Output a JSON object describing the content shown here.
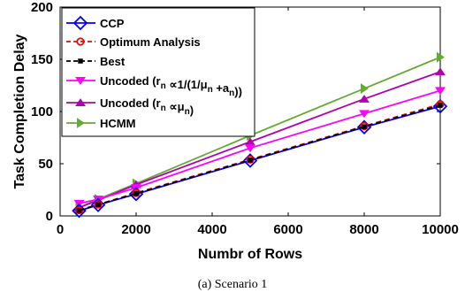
{
  "caption": "(a)  Scenario 1",
  "chart_data": {
    "type": "line",
    "xlabel": "Numbr of Rows",
    "ylabel": "Task Completion Delay",
    "xlim": [
      0,
      10000
    ],
    "ylim": [
      0,
      200
    ],
    "xticks": [
      0,
      2000,
      4000,
      6000,
      8000,
      10000
    ],
    "yticks": [
      0,
      50,
      100,
      150,
      200
    ],
    "x": [
      500,
      1000,
      2000,
      5000,
      8000,
      10000
    ],
    "legend_position": "top-left",
    "grid": false,
    "series": [
      {
        "name": "CCP",
        "values": [
          5,
          10.5,
          21,
          53,
          85,
          105
        ],
        "color": "#0000ff",
        "marker": "diamond",
        "dash": "solid"
      },
      {
        "name": "Optimum Analysis",
        "values": [
          5.5,
          11,
          22,
          54,
          86,
          107
        ],
        "color": "#ff0000",
        "marker": "circle",
        "dash": "dashed"
      },
      {
        "name": "Best",
        "values": [
          5.2,
          10.8,
          21.5,
          53.5,
          85.5,
          106
        ],
        "color": "#000000",
        "marker": "square",
        "dash": "dashed"
      },
      {
        "name": "Uncoded (r_n ∝ 1/(1/μ_n + a_n))",
        "values": [
          12,
          16,
          27,
          65,
          98,
          120
        ],
        "color": "#ff00ff",
        "marker": "triangle-down",
        "dash": "solid"
      },
      {
        "name": "Uncoded (r_n ∝ μ_n)",
        "values": [
          8,
          15,
          30,
          71,
          112,
          138
        ],
        "color": "#b000b0",
        "marker": "triangle-up",
        "dash": "solid"
      },
      {
        "name": "HCMM",
        "values": [
          8,
          16,
          31,
          77,
          122,
          152
        ],
        "color": "#66aa33",
        "marker": "triangle-right",
        "dash": "solid"
      }
    ]
  }
}
